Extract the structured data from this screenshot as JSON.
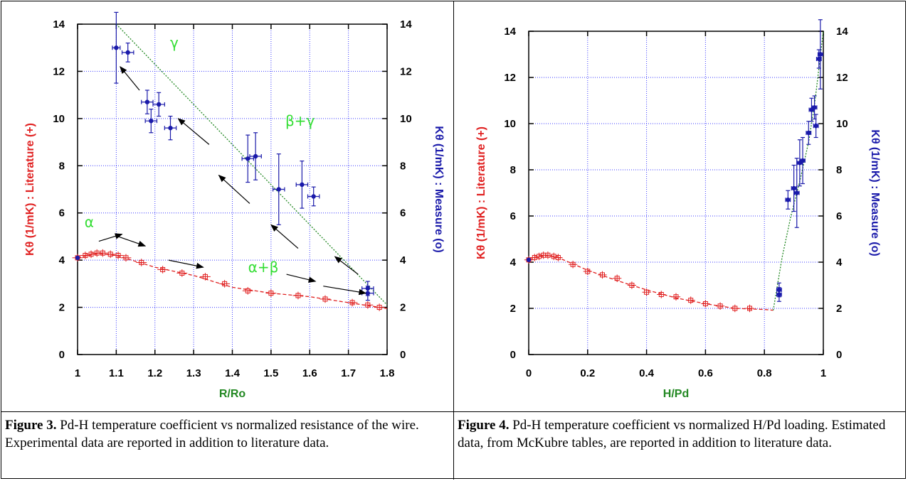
{
  "colors": {
    "literature": "#e02020",
    "measure": "#1a1aaa",
    "fit": "#228822",
    "grid": "#3b3bff",
    "xlabel": "#228822",
    "annotation": "#33dd33"
  },
  "captions": [
    {
      "label": "Figure 3.",
      "text": " Pd-H temperature coefficient vs normalized resistance of the wire. Experimental data are reported in addition to literature data."
    },
    {
      "label": "Figure 4.",
      "text": " Pd-H temperature coefficient vs normalized H/Pd loading. Estimated data, from McKubre tables, are reported in addition to literature data."
    }
  ],
  "chart_data": [
    {
      "type": "scatter",
      "title": "",
      "xlabel": "R/Ro",
      "ylabel_left": "Kθ (1/mK) : Literature (+)",
      "ylabel_right": "Kθ (1/mK) : Measure (o)",
      "xlim": [
        1,
        1.8
      ],
      "ylim": [
        0,
        14
      ],
      "xticks": [
        "1",
        "1.1",
        "1.2",
        "1.3",
        "1.4",
        "1.5",
        "1.6",
        "1.7",
        "1.8"
      ],
      "yticks": [
        "0",
        "2",
        "4",
        "6",
        "8",
        "10",
        "12",
        "14"
      ],
      "grid": true,
      "series": [
        {
          "name": "Literature (+)",
          "x": [
            1.0,
            1.02,
            1.035,
            1.05,
            1.065,
            1.085,
            1.105,
            1.125,
            1.165,
            1.22,
            1.27,
            1.33,
            1.38,
            1.44,
            1.5,
            1.57,
            1.64,
            1.71,
            1.75,
            1.78
          ],
          "y": [
            4.1,
            4.2,
            4.25,
            4.3,
            4.3,
            4.25,
            4.2,
            4.1,
            3.9,
            3.6,
            3.45,
            3.3,
            3.0,
            2.7,
            2.6,
            2.5,
            2.35,
            2.2,
            2.1,
            2.0
          ],
          "xerr": 0.01,
          "yerr": 0.1
        },
        {
          "name": "Measure (o)",
          "x": [
            1.0,
            1.1,
            1.13,
            1.18,
            1.19,
            1.21,
            1.24,
            1.44,
            1.46,
            1.52,
            1.58,
            1.61,
            1.75,
            1.75
          ],
          "y": [
            4.1,
            13.0,
            12.8,
            10.7,
            9.9,
            10.6,
            9.6,
            8.3,
            8.4,
            7.0,
            7.2,
            6.7,
            2.8,
            2.6
          ],
          "xerr": [
            0,
            0.01,
            0.015,
            0.015,
            0.015,
            0.015,
            0.015,
            0.015,
            0.015,
            0.015,
            0.015,
            0.015,
            0.015,
            0.015
          ],
          "yerr": [
            0,
            1.5,
            0.4,
            0.5,
            0.5,
            0.5,
            0.5,
            1.0,
            1.0,
            1.5,
            1.0,
            0.4,
            0.3,
            0.3
          ]
        }
      ],
      "fit_lines": [
        {
          "style": "dashed",
          "color": "literature",
          "x": [
            1.0,
            1.05,
            1.1,
            1.2,
            1.3,
            1.4,
            1.5,
            1.6,
            1.7,
            1.8
          ],
          "y": [
            4.1,
            4.28,
            4.2,
            3.7,
            3.35,
            2.85,
            2.6,
            2.45,
            2.2,
            1.95
          ]
        },
        {
          "style": "dotted",
          "color": "fit",
          "x": [
            1.1,
            1.8
          ],
          "y": [
            14.0,
            2.1
          ]
        }
      ],
      "annotations": [
        {
          "text": "γ",
          "x": 1.25,
          "y": 13.0
        },
        {
          "text": "β+γ",
          "x": 1.575,
          "y": 9.7
        },
        {
          "text": "α",
          "x": 1.03,
          "y": 5.4
        },
        {
          "text": "α+β",
          "x": 1.48,
          "y": 3.5
        }
      ],
      "arrows": [
        {
          "from": [
            1.16,
            11.2
          ],
          "to": [
            1.11,
            12.2
          ]
        },
        {
          "from": [
            1.34,
            8.9
          ],
          "to": [
            1.26,
            10.0
          ]
        },
        {
          "from": [
            1.445,
            6.4
          ],
          "to": [
            1.365,
            7.6
          ]
        },
        {
          "from": [
            1.57,
            4.5
          ],
          "to": [
            1.5,
            5.5
          ]
        },
        {
          "from": [
            1.725,
            3.4
          ],
          "to": [
            1.665,
            4.15
          ]
        },
        {
          "from": [
            1.055,
            4.8
          ],
          "to": [
            1.115,
            5.1
          ]
        },
        {
          "from": [
            1.105,
            5.0
          ],
          "to": [
            1.175,
            4.6
          ]
        },
        {
          "from": [
            1.235,
            4.0
          ],
          "to": [
            1.325,
            3.7
          ]
        },
        {
          "from": [
            1.54,
            3.4
          ],
          "to": [
            1.615,
            3.1
          ]
        },
        {
          "from": [
            1.635,
            2.9
          ],
          "to": [
            1.745,
            2.6
          ]
        }
      ]
    },
    {
      "type": "scatter",
      "title": "",
      "xlabel": "H/Pd",
      "ylabel_left": "Kθ (1/mK) : Literature (+)",
      "ylabel_right": "Kθ (1/mK) : Measure (o)",
      "xlim": [
        0,
        1
      ],
      "ylim": [
        0,
        14
      ],
      "xticks": [
        "0",
        "0.2",
        "0.4",
        "0.6",
        "0.8",
        "1"
      ],
      "yticks": [
        "0",
        "2",
        "4",
        "6",
        "8",
        "10",
        "12",
        "14"
      ],
      "grid": true,
      "series": [
        {
          "name": "Literature (+)",
          "x": [
            0.0,
            0.02,
            0.035,
            0.05,
            0.065,
            0.085,
            0.1,
            0.15,
            0.2,
            0.25,
            0.3,
            0.35,
            0.4,
            0.45,
            0.5,
            0.55,
            0.6,
            0.65,
            0.7,
            0.75
          ],
          "y": [
            4.1,
            4.2,
            4.25,
            4.3,
            4.3,
            4.25,
            4.2,
            3.9,
            3.6,
            3.45,
            3.3,
            3.0,
            2.7,
            2.6,
            2.5,
            2.35,
            2.2,
            2.1,
            2.0,
            2.0
          ],
          "xerr": 0.01,
          "yerr": 0.1
        },
        {
          "name": "Measure (o)",
          "x": [
            0.0,
            0.85,
            0.85,
            0.88,
            0.9,
            0.91,
            0.92,
            0.93,
            0.95,
            0.96,
            0.97,
            0.975,
            0.985,
            0.99
          ],
          "y": [
            4.1,
            2.8,
            2.6,
            6.7,
            7.2,
            7.0,
            8.3,
            8.4,
            9.6,
            10.6,
            10.7,
            9.9,
            12.8,
            13.0
          ],
          "xerr": [
            0,
            0.008,
            0.008,
            0.008,
            0.008,
            0.008,
            0.008,
            0.008,
            0.008,
            0.008,
            0.008,
            0.008,
            0.008,
            0.008
          ],
          "yerr": [
            0,
            0.3,
            0.3,
            0.4,
            1.0,
            1.5,
            1.0,
            1.0,
            0.5,
            0.5,
            0.5,
            0.5,
            0.4,
            1.5
          ]
        }
      ],
      "fit_lines": [
        {
          "style": "dashed",
          "color": "literature",
          "x": [
            0.0,
            0.05,
            0.1,
            0.2,
            0.3,
            0.4,
            0.5,
            0.6,
            0.7,
            0.8,
            0.83
          ],
          "y": [
            4.1,
            4.3,
            4.2,
            3.65,
            3.2,
            2.8,
            2.45,
            2.2,
            2.0,
            1.95,
            1.92
          ]
        },
        {
          "style": "dotted",
          "color": "fit",
          "x": [
            0.83,
            0.86,
            0.89,
            0.92,
            0.95,
            0.97,
            0.985,
            1.0
          ],
          "y": [
            1.92,
            4.2,
            6.0,
            7.5,
            9.2,
            10.8,
            12.4,
            14.0
          ]
        }
      ],
      "annotations": [],
      "arrows": []
    }
  ]
}
